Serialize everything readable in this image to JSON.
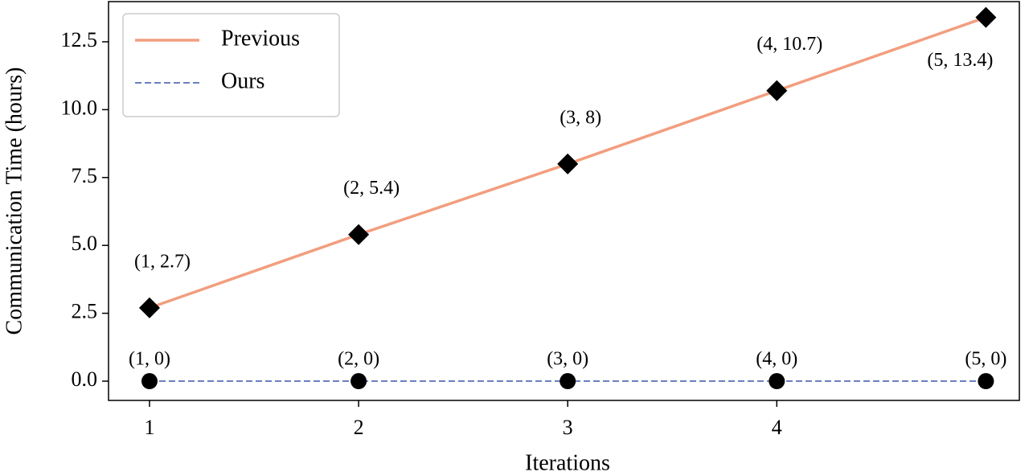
{
  "chart_data": {
    "type": "line",
    "x_label": "Iterations",
    "y_label": "Communication Time (hours)",
    "x": [
      1,
      2,
      3,
      4,
      5
    ],
    "series": [
      {
        "name": "Previous",
        "color": "#f29e7f",
        "linestyle": "solid",
        "marker": "diamond",
        "values": [
          2.7,
          5.4,
          8,
          10.7,
          13.4
        ],
        "value_labels": [
          "(1, 2.7)",
          "(2, 5.4)",
          "(3, 8)",
          "(4, 10.7)",
          "(5, 13.4)"
        ]
      },
      {
        "name": "Ours",
        "color": "#6b7fc0",
        "linestyle": "dashed",
        "marker": "circle",
        "values": [
          0,
          0,
          0,
          0,
          0
        ],
        "value_labels": [
          "(1, 0)",
          "(2, 0)",
          "(3, 0)",
          "(4, 0)",
          "(5, 0)"
        ]
      }
    ],
    "xlim": [
      0.804,
      5.16
    ],
    "ylim": [
      -0.71,
      13.98
    ],
    "xticks": [
      1,
      2,
      3,
      4
    ],
    "yticks": [
      {
        "value": 0,
        "label": "0.0"
      },
      2.5,
      {
        "value": 5,
        "label": "5.0"
      },
      7.5,
      {
        "value": 10,
        "label": "10.0"
      },
      12.5
    ],
    "legend": "upper left",
    "grid": false
  }
}
